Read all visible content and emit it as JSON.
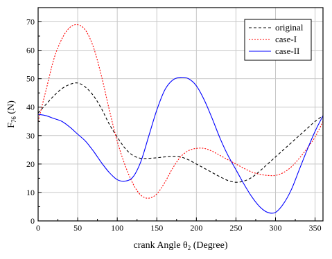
{
  "chart_data": {
    "type": "line",
    "xlabel_main": "crank Angle θ",
    "xlabel_sub": "2",
    "xlabel_unit": " (Degree)",
    "ylabel_main": "F",
    "ylabel_sub": "76",
    "ylabel_unit": " (N)",
    "xlim": [
      0,
      360
    ],
    "ylim": [
      0,
      75
    ],
    "grid": true,
    "legend_position": "top-right",
    "x_ticks": [
      "0",
      "50",
      "100",
      "150",
      "200",
      "250",
      "300",
      "350"
    ],
    "y_ticks": [
      "0",
      "10",
      "20",
      "30",
      "40",
      "50",
      "60",
      "70"
    ],
    "x": [
      0,
      10,
      20,
      30,
      40,
      50,
      60,
      70,
      80,
      90,
      100,
      110,
      120,
      130,
      140,
      150,
      160,
      170,
      180,
      190,
      200,
      210,
      220,
      230,
      240,
      250,
      260,
      270,
      280,
      290,
      300,
      310,
      320,
      330,
      340,
      350,
      360
    ],
    "series": [
      {
        "name": "original",
        "color": "#000000",
        "dash": "dashed",
        "values": [
          38,
          41,
          44,
          46.5,
          48,
          48.5,
          47,
          44,
          39.5,
          34,
          29.5,
          25.5,
          23,
          22,
          22,
          22.2,
          22.5,
          22.7,
          22.5,
          21.5,
          20,
          18.5,
          17,
          15.5,
          14.2,
          13.6,
          14,
          15.3,
          17.5,
          20,
          22.5,
          25,
          27.5,
          30,
          32.5,
          35,
          37
        ]
      },
      {
        "name": "case-I",
        "color": "#ff0000",
        "dash": "dotted",
        "values": [
          35,
          46,
          57,
          64,
          68,
          69,
          67,
          61,
          51,
          39,
          28,
          19.5,
          13,
          9,
          8,
          9.5,
          13.5,
          18.5,
          22.5,
          24.7,
          25.5,
          25.5,
          24.5,
          23,
          21.5,
          20,
          18.5,
          17.2,
          16.4,
          16,
          16,
          17,
          19,
          22,
          25.5,
          29.5,
          35
        ]
      },
      {
        "name": "case-II",
        "color": "#0000ff",
        "dash": "solid",
        "values": [
          37.5,
          37,
          36,
          35,
          33,
          30.5,
          28,
          24.5,
          20.5,
          17,
          14.5,
          14,
          15.5,
          21,
          30,
          39,
          46,
          49.5,
          50.5,
          50,
          47.5,
          42.5,
          36,
          29,
          23,
          18,
          13,
          8.5,
          5,
          3,
          3,
          6,
          11,
          18,
          25,
          31.5,
          37
        ]
      }
    ]
  }
}
